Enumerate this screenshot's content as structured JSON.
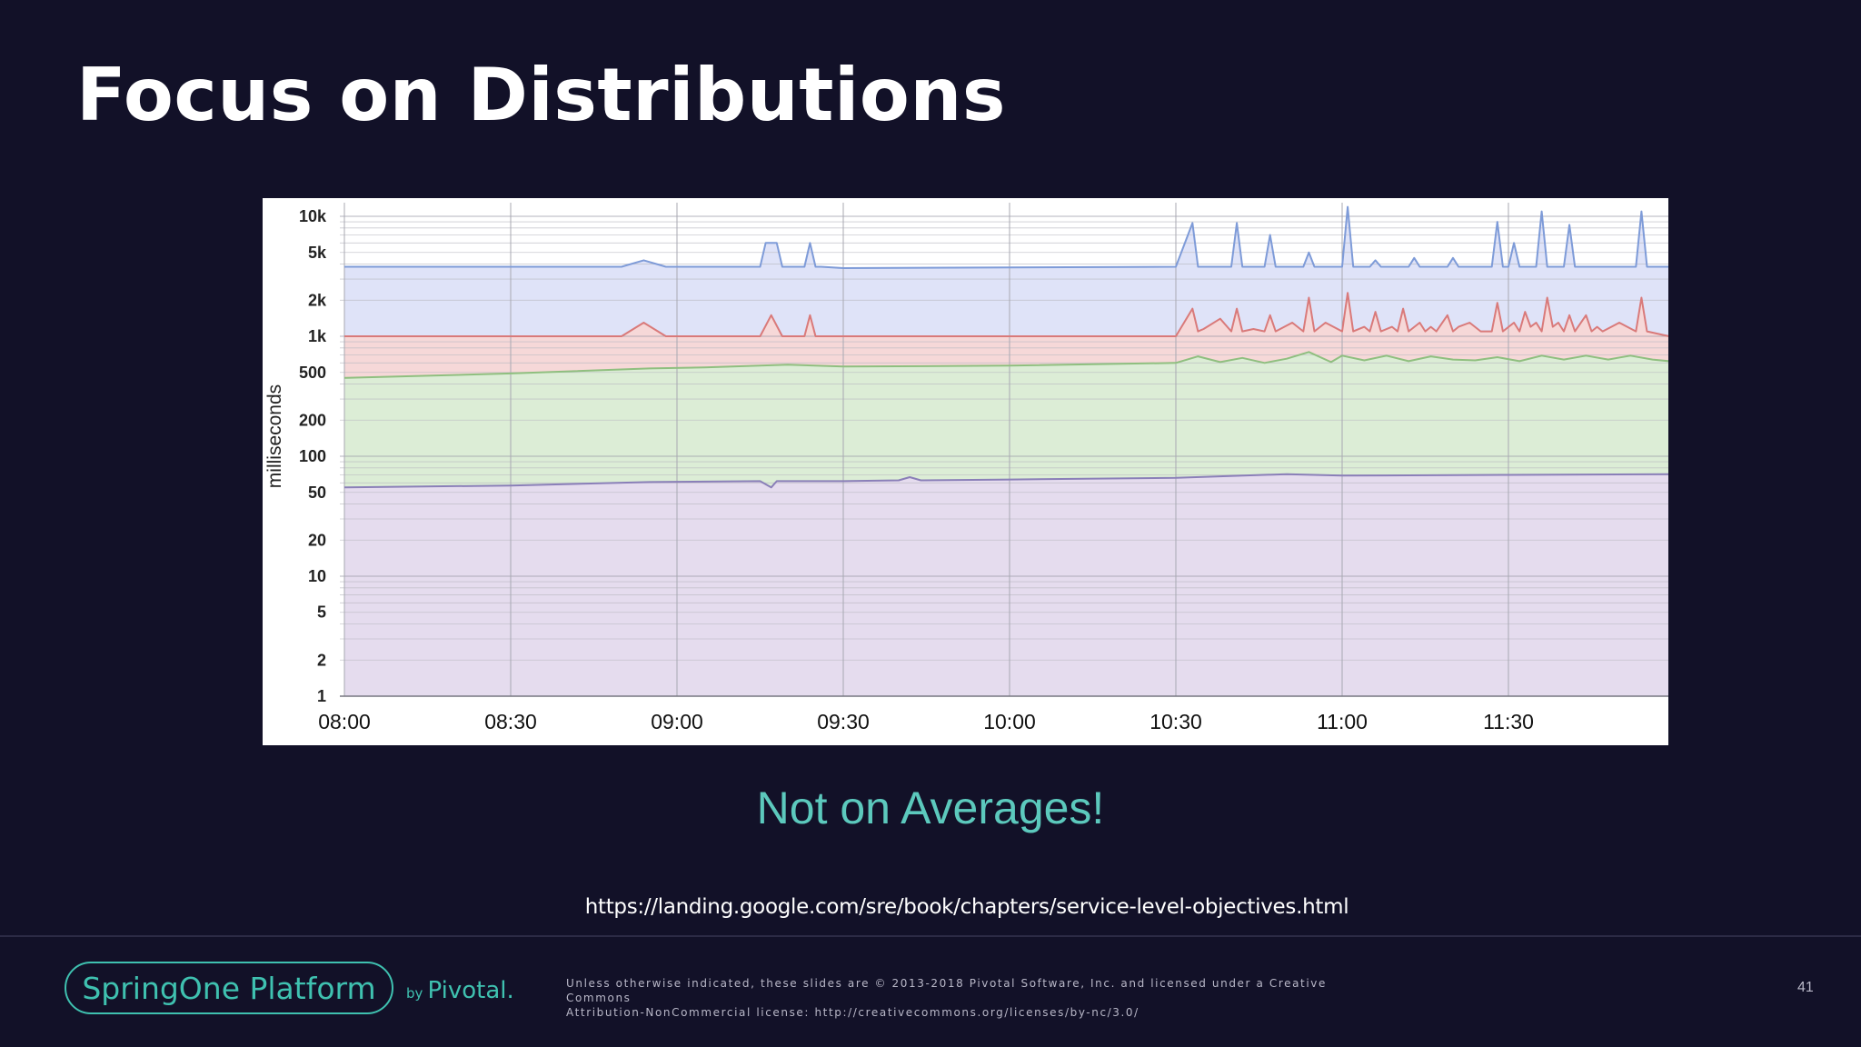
{
  "slide": {
    "title": "Focus on Distributions",
    "subtitle": "Not on Averages!",
    "source_url": "https://landing.google.com/sre/book/chapters/service-level-objectives.html",
    "footer": {
      "logo_text": "SpringOne Platform",
      "by_text": "by",
      "pivotal_text": "Pivotal.",
      "legal_line_1": "Unless otherwise indicated, these slides are © 2013-2018 Pivotal Software, Inc. and licensed under a Creative Commons",
      "legal_line_2": "Attribution-NonCommercial license: http://creativecommons.org/licenses/by-nc/3.0/",
      "page_number": "41"
    },
    "colors": {
      "background": "#121128",
      "accent": "#3fc1b0",
      "subtitle": "#5cc9bd"
    }
  },
  "chart_data": {
    "type": "area",
    "title": "",
    "xlabel": "",
    "ylabel": "milliseconds",
    "yscale": "log",
    "ylim": [
      1,
      13000
    ],
    "xlim": [
      "08:00",
      "11:59"
    ],
    "x_ticks": [
      "08:00",
      "08:30",
      "09:00",
      "09:30",
      "10:00",
      "10:30",
      "11:00",
      "11:30"
    ],
    "y_ticks": [
      {
        "value": 10000,
        "label": "10k"
      },
      {
        "value": 5000,
        "label": "5k"
      },
      {
        "value": 2000,
        "label": "2k"
      },
      {
        "value": 1000,
        "label": "1k"
      },
      {
        "value": 500,
        "label": "500"
      },
      {
        "value": 200,
        "label": "200"
      },
      {
        "value": 100,
        "label": "100"
      },
      {
        "value": 50,
        "label": "50"
      },
      {
        "value": 20,
        "label": "20"
      },
      {
        "value": 10,
        "label": "10"
      },
      {
        "value": 5,
        "label": "5"
      },
      {
        "value": 2,
        "label": "2"
      },
      {
        "value": 1,
        "label": "1"
      }
    ],
    "grid": true,
    "legend": "none",
    "series": [
      {
        "color": "#7e9bd8",
        "fill": "#dfe3f8",
        "x": [
          "08:00",
          "08:50",
          "08:54",
          "08:58",
          "09:15",
          "09:16",
          "09:17",
          "09:18",
          "09:19",
          "09:20",
          "09:23",
          "09:24",
          "09:25",
          "09:26",
          "09:30",
          "10:30",
          "10:33",
          "10:34",
          "10:35",
          "10:40",
          "10:41",
          "10:42",
          "10:46",
          "10:47",
          "10:48",
          "10:53",
          "10:54",
          "10:55",
          "11:00",
          "11:01",
          "11:02",
          "11:05",
          "11:06",
          "11:07",
          "11:12",
          "11:13",
          "11:14",
          "11:19",
          "11:20",
          "11:21",
          "11:27",
          "11:28",
          "11:29",
          "11:30",
          "11:31",
          "11:32",
          "11:35",
          "11:36",
          "11:37",
          "11:40",
          "11:41",
          "11:42",
          "11:53",
          "11:54",
          "11:55",
          "11:59"
        ],
        "values": [
          3800,
          3800,
          4300,
          3800,
          3800,
          6000,
          6000,
          6000,
          3800,
          3800,
          3800,
          6000,
          3800,
          3800,
          3700,
          3800,
          8800,
          3800,
          3800,
          3800,
          8800,
          3800,
          3800,
          7000,
          3800,
          3800,
          5000,
          3800,
          3800,
          12000,
          3800,
          3800,
          4300,
          3800,
          3800,
          4500,
          3800,
          3800,
          4500,
          3800,
          3800,
          9000,
          3800,
          3800,
          6000,
          3800,
          3800,
          11000,
          3800,
          3800,
          8500,
          3800,
          3800,
          11000,
          3800,
          3800
        ]
      },
      {
        "color": "#d97a7a",
        "fill": "#f6d8d8",
        "x": [
          "08:00",
          "08:50",
          "08:54",
          "08:58",
          "09:15",
          "09:17",
          "09:19",
          "09:20",
          "09:23",
          "09:24",
          "09:25",
          "09:26",
          "09:30",
          "10:30",
          "10:33",
          "10:34",
          "10:35",
          "10:38",
          "10:40",
          "10:41",
          "10:42",
          "10:44",
          "10:46",
          "10:47",
          "10:48",
          "10:51",
          "10:53",
          "10:54",
          "10:55",
          "10:57",
          "11:00",
          "11:01",
          "11:02",
          "11:04",
          "11:05",
          "11:06",
          "11:07",
          "11:09",
          "11:10",
          "11:11",
          "11:12",
          "11:14",
          "11:15",
          "11:16",
          "11:17",
          "11:19",
          "11:20",
          "11:21",
          "11:23",
          "11:25",
          "11:27",
          "11:28",
          "11:29",
          "11:31",
          "11:32",
          "11:33",
          "11:34",
          "11:35",
          "11:36",
          "11:37",
          "11:38",
          "11:39",
          "11:40",
          "11:41",
          "11:42",
          "11:44",
          "11:45",
          "11:46",
          "11:47",
          "11:50",
          "11:53",
          "11:54",
          "11:55",
          "11:59"
        ],
        "values": [
          1000,
          1000,
          1300,
          1000,
          1000,
          1500,
          1000,
          1000,
          1000,
          1500,
          1000,
          1000,
          1000,
          1000,
          1700,
          1100,
          1150,
          1400,
          1100,
          1700,
          1100,
          1150,
          1100,
          1500,
          1100,
          1300,
          1100,
          2100,
          1100,
          1300,
          1100,
          2300,
          1100,
          1200,
          1100,
          1600,
          1100,
          1200,
          1100,
          1700,
          1100,
          1300,
          1100,
          1200,
          1100,
          1500,
          1100,
          1200,
          1300,
          1100,
          1100,
          1900,
          1100,
          1300,
          1100,
          1600,
          1200,
          1300,
          1100,
          2100,
          1200,
          1300,
          1100,
          1500,
          1100,
          1500,
          1100,
          1200,
          1100,
          1300,
          1100,
          2100,
          1100,
          1000
        ]
      },
      {
        "color": "#8fbf7f",
        "fill": "#dcedd6",
        "x": [
          "08:00",
          "08:30",
          "08:55",
          "09:05",
          "09:20",
          "09:30",
          "10:00",
          "10:30",
          "10:34",
          "10:38",
          "10:42",
          "10:46",
          "10:50",
          "10:54",
          "10:58",
          "11:00",
          "11:04",
          "11:08",
          "11:12",
          "11:16",
          "11:20",
          "11:24",
          "11:28",
          "11:32",
          "11:36",
          "11:40",
          "11:44",
          "11:48",
          "11:52",
          "11:56",
          "11:59"
        ],
        "values": [
          450,
          490,
          540,
          550,
          580,
          560,
          570,
          600,
          680,
          610,
          660,
          600,
          650,
          740,
          610,
          690,
          630,
          690,
          620,
          680,
          640,
          630,
          670,
          620,
          690,
          640,
          690,
          640,
          690,
          640,
          620
        ]
      },
      {
        "color": "#8a7fb8",
        "fill": "#e5dcee",
        "x": [
          "08:00",
          "08:30",
          "08:55",
          "09:15",
          "09:17",
          "09:18",
          "09:30",
          "09:40",
          "09:42",
          "09:44",
          "10:00",
          "10:30",
          "10:50",
          "11:00",
          "11:30",
          "11:59"
        ],
        "values": [
          55,
          57,
          61,
          62,
          55,
          62,
          62,
          63,
          67,
          63,
          64,
          66,
          71,
          69,
          70,
          71
        ]
      }
    ]
  }
}
